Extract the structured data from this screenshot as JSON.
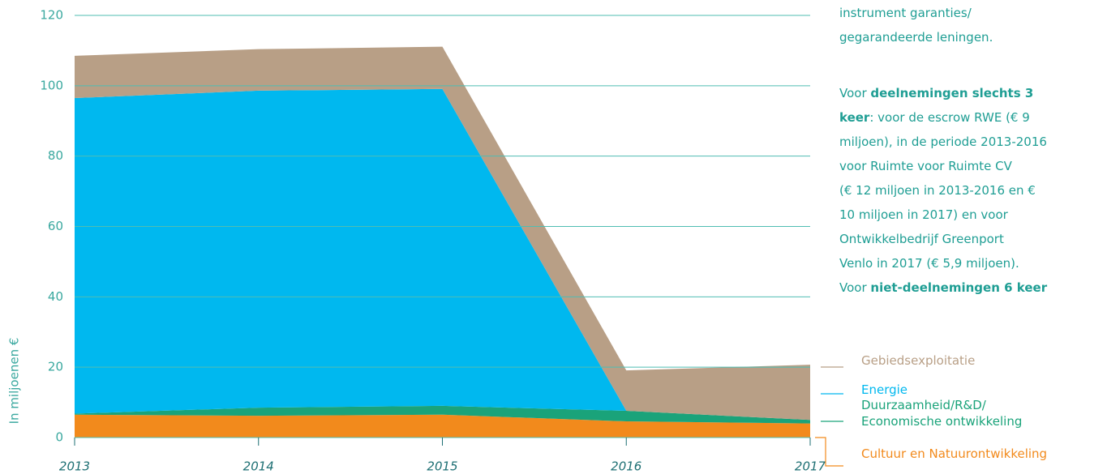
{
  "chart_data": {
    "type": "stacked-area",
    "y_label": "In miljoenen €",
    "x": [
      2013,
      2014,
      2015,
      2016,
      2017
    ],
    "xlim": [
      2013,
      2017
    ],
    "xticks": [
      2013,
      2014,
      2015,
      2016,
      2017
    ],
    "ylim": [
      0,
      120
    ],
    "yticks": [
      0,
      20,
      40,
      60,
      80,
      100,
      120
    ],
    "grid": true,
    "series": [
      {
        "name": "Cultuur en Natuurontwikkeling",
        "color": "#f28a1c",
        "values": [
          6.5,
          6.2,
          6.5,
          4.6,
          4
        ]
      },
      {
        "name": "Duurzaamheid/R&D/\nEconomische ontwikkeling",
        "color": "#1aa37a",
        "values": [
          0.3,
          2.3,
          2.5,
          3,
          1
        ]
      },
      {
        "name": "Energie",
        "color": "#00b8ef",
        "values": [
          89.7,
          90.1,
          90.1,
          0,
          0
        ]
      },
      {
        "name": "Gebiedsexploitatie",
        "color": "#b89f86",
        "values": [
          12,
          11.8,
          12,
          11.5,
          15.7
        ]
      }
    ]
  },
  "text": {
    "lines": [
      [
        {
          "text": "instrument garanties/"
        }
      ],
      [
        {
          "text": "gegarandeerde leningen."
        }
      ],
      [
        {
          "text": "Voor "
        },
        {
          "text": "deelnemingen slechts 3",
          "bold": true
        }
      ],
      [
        {
          "text": "keer",
          "bold": true
        },
        {
          "text": ": voor de escrow RWE (€ 9"
        }
      ],
      [
        {
          "text": "miljoen), in de periode 2013-2016"
        }
      ],
      [
        {
          "text": "voor Ruimte voor Ruimte CV"
        }
      ],
      [
        {
          "text": "(€ 12 miljoen in 2013-2016 en €"
        }
      ],
      [
        {
          "text": "10 miljoen in 2017) en voor"
        }
      ],
      [
        {
          "text": "Ontwikkelbedrijf Greenport"
        }
      ],
      [
        {
          "text": "Venlo in 2017 (€ 5,9 miljoen)."
        }
      ],
      [
        {
          "text": "Voor "
        },
        {
          "text": "niet-deelnemingen 6 keer",
          "bold": true
        }
      ]
    ]
  }
}
